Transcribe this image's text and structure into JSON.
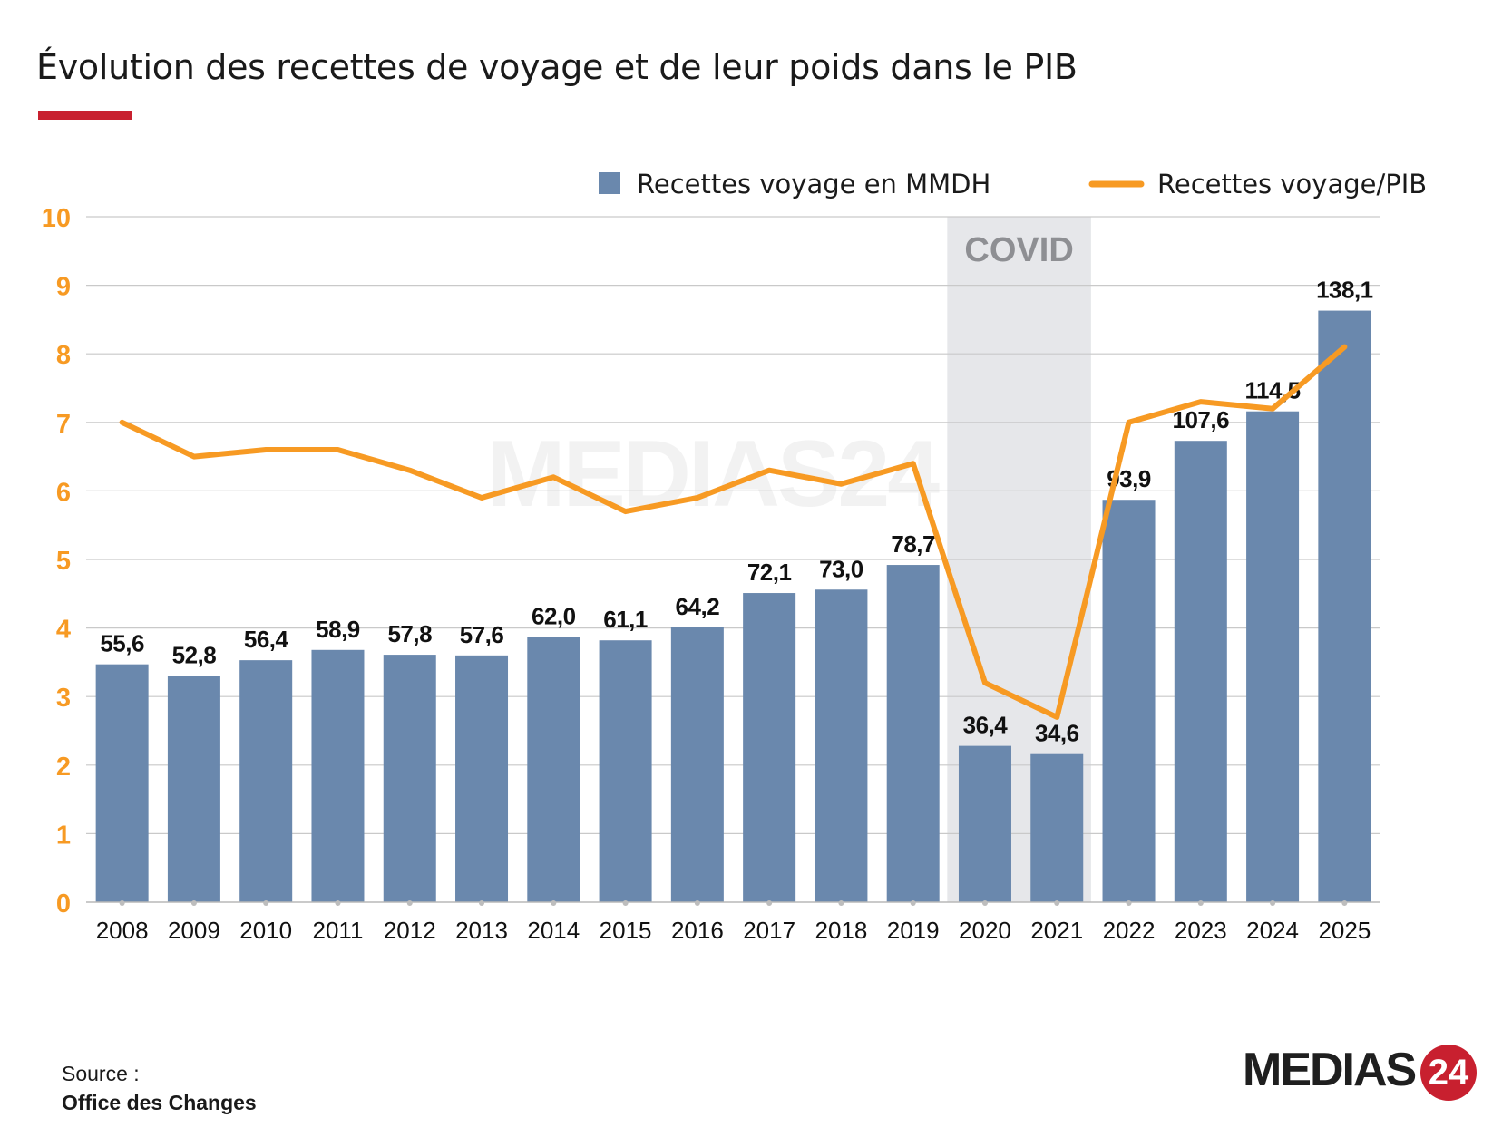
{
  "title": "Évolution des recettes de voyage et de leur poids dans le PIB",
  "accent_color": "#c8202f",
  "bar_color": "#6a88ad",
  "line_color": "#f79a23",
  "axis_tick_color": "#f79a23",
  "covid_band_color": "#e6e7ea",
  "covid_label": "COVID",
  "watermark_text": "MEDIAS24",
  "source": {
    "label": "Source :",
    "name": "Office des Changes"
  },
  "logo": {
    "text": "MEDIAS",
    "number": "24"
  },
  "chart_data": {
    "type": "bar",
    "categories": [
      "2008",
      "2009",
      "2010",
      "2011",
      "2012",
      "2013",
      "2014",
      "2015",
      "2016",
      "2017",
      "2018",
      "2019",
      "2020",
      "2021",
      "2022",
      "2023",
      "2024",
      "2025"
    ],
    "ylim": [
      0,
      10
    ],
    "yticks": [
      "0",
      "1",
      "2",
      "3",
      "4",
      "5",
      "6",
      "7",
      "8",
      "9",
      "10"
    ],
    "grid": true,
    "legend_position": "top-right",
    "covid_range": [
      "2020",
      "2021"
    ],
    "series": [
      {
        "name": "Recettes voyage en MMDH",
        "kind": "bar",
        "values": [
          3.47,
          3.3,
          3.53,
          3.68,
          3.61,
          3.6,
          3.87,
          3.82,
          4.01,
          4.51,
          4.56,
          4.92,
          2.28,
          2.16,
          5.87,
          6.73,
          7.16,
          8.63
        ],
        "labels": [
          "55,6",
          "52,8",
          "56,4",
          "58,9",
          "57,8",
          "57,6",
          "62,0",
          "61,1",
          "64,2",
          "72,1",
          "73,0",
          "78,7",
          "36,4",
          "34,6",
          "93,9",
          "107,6",
          "114,5",
          "138,1"
        ]
      },
      {
        "name": "Recettes voyage/PIB",
        "kind": "line",
        "values": [
          7.0,
          6.5,
          6.6,
          6.6,
          6.3,
          5.9,
          6.2,
          5.7,
          5.9,
          6.3,
          6.1,
          6.4,
          3.2,
          2.7,
          7.0,
          7.3,
          7.2,
          8.1
        ]
      }
    ]
  }
}
